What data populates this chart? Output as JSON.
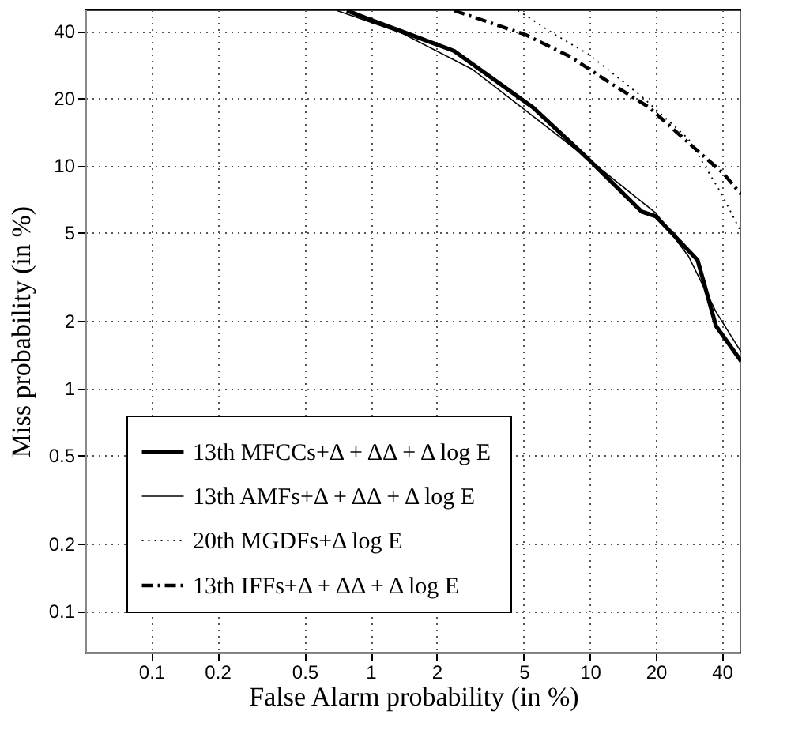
{
  "chart_data": {
    "type": "line",
    "xlabel": "False Alarm probability (in %)",
    "ylabel": "Miss probability (in %)",
    "log": "xy",
    "xlim": [
      0.05,
      49
    ],
    "ylim": [
      0.065,
      50
    ],
    "xticks": [
      0.1,
      0.2,
      0.5,
      1,
      2,
      5,
      10,
      20,
      40
    ],
    "yticks": [
      0.1,
      0.2,
      0.5,
      1,
      2,
      5,
      10,
      20,
      40
    ],
    "grid": true,
    "legend": "bottom left",
    "series": [
      {
        "name": "13th MFCCs+Δ + ΔΔ + Δ log E",
        "color": "#000000",
        "line_style": "solid",
        "x": [
          0.78,
          0.96,
          2.4,
          5.5,
          9.9,
          17.2,
          20,
          31,
          37.6,
          49
        ],
        "values": [
          49.5,
          45.6,
          32.6,
          18.2,
          10.6,
          6.2,
          5.9,
          3.75,
          1.9,
          1.32
        ]
      },
      {
        "name": "13th AMFs+Δ + ΔΔ + Δ log E",
        "color": "#000000",
        "line_style": "solid",
        "x": [
          0.7,
          1.37,
          2.9,
          5.1,
          9.9,
          20,
          28.2,
          37.6,
          49
        ],
        "values": [
          49.5,
          39.4,
          27,
          17.6,
          10.6,
          6.1,
          3.9,
          2.2,
          1.45
        ]
      },
      {
        "name": "20th MGDFs+Δ log E",
        "color": "#000000",
        "line_style": "dotted",
        "x": [
          4.7,
          6.7,
          9.9,
          17.2,
          28.2,
          39.7,
          49
        ],
        "values": [
          49.5,
          39.4,
          31.4,
          20.4,
          13.1,
          7.5,
          5.0
        ]
      },
      {
        "name": "13th IFFs+Δ + ΔΔ + Δ log E",
        "color": "#000000",
        "line_style": "dashed",
        "x": [
          2.4,
          5.1,
          8.2,
          12.3,
          18.6,
          28.2,
          40.6,
          49
        ],
        "values": [
          49.5,
          38.5,
          30.6,
          23.5,
          18.2,
          12.6,
          9.2,
          7.4
        ]
      }
    ]
  }
}
